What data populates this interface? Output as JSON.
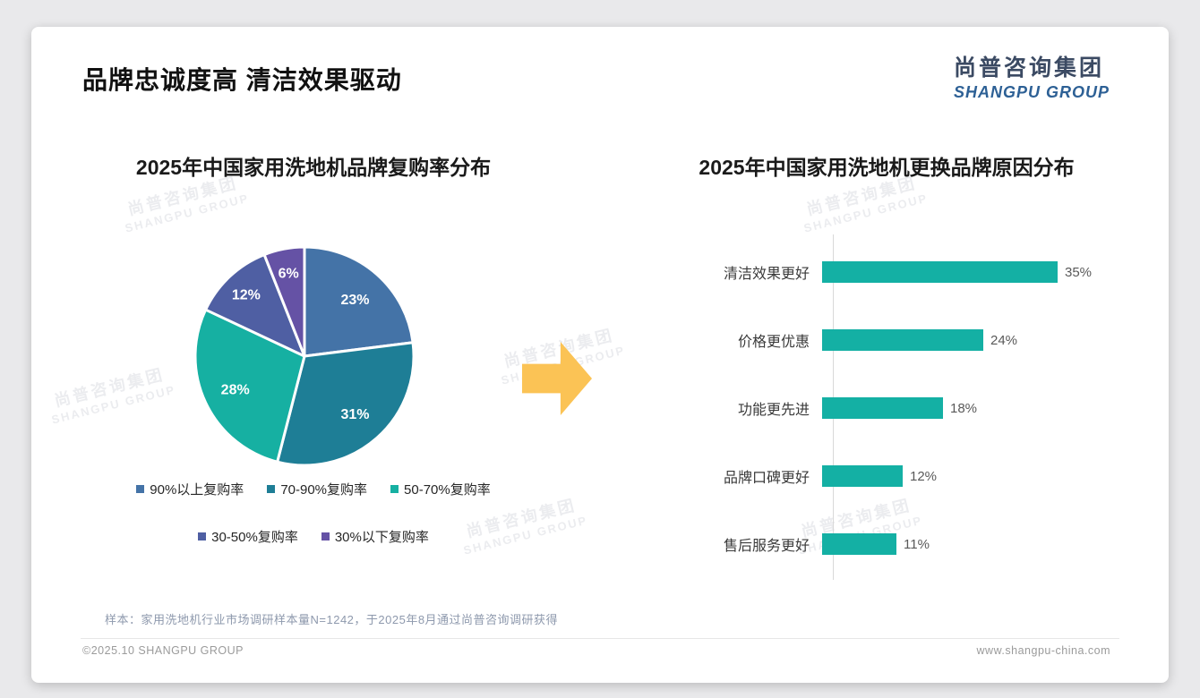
{
  "page": {
    "title": "品牌忠诚度高 清洁效果驱动",
    "logo": {
      "cn": "尚普咨询集团",
      "en": "SHANGPU GROUP"
    },
    "watermark": {
      "cn": "尚普咨询集团",
      "en": "SHANGPU GROUP"
    },
    "note": "样本：家用洗地机行业市场调研样本量N=1242，于2025年8月通过尚普咨询调研获得",
    "footer": {
      "left": "©2025.10 SHANGPU GROUP",
      "right": "www.shangpu-china.com"
    }
  },
  "arrow": {
    "direction": "right",
    "color": "#fbc355"
  },
  "chart_data": [
    {
      "type": "pie",
      "title": "2025年中国家用洗地机品牌复购率分布",
      "labels": [
        "90%以上复购率",
        "70-90%复购率",
        "50-70%复购率",
        "30-50%复购率",
        "30%以下复购率"
      ],
      "values": [
        23,
        31,
        28,
        12,
        6
      ],
      "unit": "%",
      "colors": [
        "#4473a7",
        "#1e7e96",
        "#16b0a2",
        "#4f5fa3",
        "#6552a5"
      ],
      "start_angle_deg": 0,
      "direction": "clockwise",
      "slice_border_color": "#ffffff",
      "data_label_color": "#ffffff",
      "legend_position": "bottom"
    },
    {
      "type": "bar",
      "orientation": "horizontal",
      "title": "2025年中国家用洗地机更换品牌原因分布",
      "categories": [
        "清洁效果更好",
        "价格更优惠",
        "功能更先进",
        "品牌口碑更好",
        "售后服务更好"
      ],
      "values": [
        35,
        24,
        18,
        12,
        11
      ],
      "unit": "%",
      "bar_color": "#14b0a4",
      "value_label_color": "#595959",
      "xlim": [
        0,
        38
      ],
      "grid": false,
      "legend_position": "none"
    }
  ]
}
